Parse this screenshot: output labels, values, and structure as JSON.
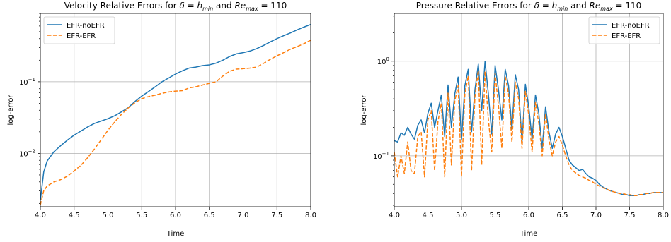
{
  "chart_data": [
    {
      "type": "line",
      "title": "Velocity Relative Errors for δ = h_min and Re_max = 110",
      "title_parts": {
        "pre": "Velocity Relative Errors for ",
        "delta": "δ",
        "eq1": " = ",
        "h": "h",
        "hsub": "min",
        "and": " and ",
        "re": "Re",
        "resub": "max",
        "eq2": " = 110"
      },
      "xlabel": "Time",
      "ylabel": "log-error",
      "xlim": [
        4.0,
        8.0
      ],
      "ylim": [
        0.0018,
        0.9
      ],
      "yscale": "log",
      "grid": true,
      "legend_position": "top-left",
      "x_ticks": [
        "4.0",
        "4.5",
        "5.0",
        "5.5",
        "6.0",
        "6.5",
        "7.0",
        "7.5",
        "8.0"
      ],
      "y_ticks": [
        {
          "value": 0.01,
          "base": "10",
          "exp": "−2"
        },
        {
          "value": 0.1,
          "base": "10",
          "exp": "−1"
        }
      ],
      "series": [
        {
          "name": "EFR-noEFR",
          "color": "#1f77b4",
          "style": "solid",
          "x": [
            4.0,
            4.05,
            4.1,
            4.2,
            4.3,
            4.4,
            4.5,
            4.6,
            4.7,
            4.8,
            4.9,
            5.0,
            5.1,
            5.2,
            5.3,
            5.4,
            5.5,
            5.6,
            5.7,
            5.8,
            5.9,
            6.0,
            6.1,
            6.2,
            6.3,
            6.4,
            6.5,
            6.6,
            6.7,
            6.8,
            6.9,
            7.0,
            7.1,
            7.2,
            7.3,
            7.4,
            7.5,
            7.6,
            7.7,
            7.8,
            7.9,
            8.0
          ],
          "y": [
            0.0022,
            0.0055,
            0.0078,
            0.0105,
            0.0128,
            0.0153,
            0.018,
            0.0205,
            0.0234,
            0.0262,
            0.0283,
            0.0305,
            0.0335,
            0.038,
            0.0435,
            0.053,
            0.063,
            0.073,
            0.085,
            0.1,
            0.113,
            0.128,
            0.142,
            0.155,
            0.16,
            0.168,
            0.172,
            0.182,
            0.2,
            0.225,
            0.245,
            0.255,
            0.268,
            0.29,
            0.32,
            0.36,
            0.4,
            0.44,
            0.48,
            0.53,
            0.58,
            0.63
          ]
        },
        {
          "name": "EFR-EFR",
          "color": "#ff7f0e",
          "style": "dashed",
          "x": [
            4.0,
            4.05,
            4.1,
            4.2,
            4.3,
            4.4,
            4.5,
            4.6,
            4.7,
            4.8,
            4.9,
            5.0,
            5.1,
            5.2,
            5.3,
            5.4,
            5.5,
            5.6,
            5.7,
            5.8,
            5.9,
            6.0,
            6.1,
            6.2,
            6.3,
            6.4,
            6.5,
            6.6,
            6.7,
            6.8,
            6.9,
            7.0,
            7.1,
            7.2,
            7.3,
            7.4,
            7.5,
            7.6,
            7.7,
            7.8,
            7.9,
            8.0
          ],
          "y": [
            0.0019,
            0.003,
            0.0035,
            0.004,
            0.0043,
            0.0048,
            0.0057,
            0.0068,
            0.0087,
            0.0115,
            0.0155,
            0.021,
            0.0275,
            0.035,
            0.043,
            0.051,
            0.058,
            0.062,
            0.065,
            0.069,
            0.072,
            0.074,
            0.075,
            0.082,
            0.085,
            0.09,
            0.095,
            0.1,
            0.12,
            0.14,
            0.15,
            0.152,
            0.155,
            0.16,
            0.18,
            0.205,
            0.23,
            0.255,
            0.285,
            0.31,
            0.34,
            0.38
          ]
        }
      ]
    },
    {
      "type": "line",
      "title": "Pressure Relative Errors for δ = h_min and Re_max = 110",
      "title_parts": {
        "pre": "Pressure Relative Errors for ",
        "delta": "δ",
        "eq1": " = ",
        "h": "h",
        "hsub": "min",
        "and": " and ",
        "re": "Re",
        "resub": "max",
        "eq2": " = 110"
      },
      "xlabel": "Time",
      "ylabel": "log-error",
      "xlim": [
        4.0,
        8.0
      ],
      "ylim": [
        0.029,
        3.2
      ],
      "yscale": "log",
      "grid": true,
      "legend_position": "top-right",
      "x_ticks": [
        "4.0",
        "4.5",
        "5.0",
        "5.5",
        "6.0",
        "6.5",
        "7.0",
        "7.5",
        "8.0"
      ],
      "y_ticks": [
        {
          "value": 0.1,
          "base": "10",
          "exp": "−1"
        },
        {
          "value": 1.0,
          "base": "10",
          "exp": "0"
        }
      ],
      "series": [
        {
          "name": "EFR-noEFR",
          "color": "#1f77b4",
          "style": "solid",
          "x": [
            4.0,
            4.05,
            4.1,
            4.15,
            4.2,
            4.25,
            4.3,
            4.35,
            4.4,
            4.45,
            4.5,
            4.55,
            4.6,
            4.65,
            4.7,
            4.75,
            4.8,
            4.85,
            4.9,
            4.95,
            5.0,
            5.05,
            5.1,
            5.15,
            5.2,
            5.25,
            5.3,
            5.35,
            5.4,
            5.45,
            5.5,
            5.55,
            5.6,
            5.65,
            5.7,
            5.75,
            5.8,
            5.85,
            5.9,
            5.95,
            6.0,
            6.05,
            6.1,
            6.15,
            6.2,
            6.25,
            6.3,
            6.35,
            6.4,
            6.45,
            6.5,
            6.55,
            6.6,
            6.65,
            6.7,
            6.75,
            6.8,
            6.85,
            6.9,
            6.95,
            7.0,
            7.05,
            7.1,
            7.15,
            7.2,
            7.25,
            7.3,
            7.35,
            7.4,
            7.45,
            7.5,
            7.55,
            7.6,
            7.65,
            7.7,
            7.75,
            7.8,
            7.85,
            7.9,
            7.95,
            8.0
          ],
          "y": [
            0.145,
            0.14,
            0.175,
            0.165,
            0.2,
            0.17,
            0.15,
            0.21,
            0.24,
            0.175,
            0.28,
            0.36,
            0.2,
            0.3,
            0.44,
            0.16,
            0.56,
            0.2,
            0.45,
            0.68,
            0.15,
            0.55,
            0.82,
            0.18,
            0.5,
            0.93,
            0.3,
            1.0,
            0.45,
            0.17,
            0.9,
            0.5,
            0.24,
            0.82,
            0.55,
            0.19,
            0.72,
            0.5,
            0.14,
            0.57,
            0.33,
            0.15,
            0.44,
            0.28,
            0.12,
            0.33,
            0.18,
            0.12,
            0.17,
            0.2,
            0.16,
            0.12,
            0.09,
            0.08,
            0.075,
            0.07,
            0.072,
            0.065,
            0.06,
            0.058,
            0.055,
            0.05,
            0.047,
            0.045,
            0.043,
            0.042,
            0.041,
            0.04,
            0.039,
            0.039,
            0.038,
            0.038,
            0.038,
            0.039,
            0.039,
            0.04,
            0.04,
            0.041,
            0.041,
            0.041,
            0.041
          ]
        },
        {
          "name": "EFR-EFR",
          "color": "#ff7f0e",
          "style": "dashed",
          "x": [
            4.0,
            4.05,
            4.1,
            4.15,
            4.2,
            4.25,
            4.3,
            4.35,
            4.4,
            4.45,
            4.5,
            4.55,
            4.6,
            4.65,
            4.7,
            4.75,
            4.8,
            4.85,
            4.9,
            4.95,
            5.0,
            5.05,
            5.1,
            5.15,
            5.2,
            5.25,
            5.3,
            5.35,
            5.4,
            5.45,
            5.5,
            5.55,
            5.6,
            5.65,
            5.7,
            5.75,
            5.8,
            5.85,
            5.9,
            5.95,
            6.0,
            6.05,
            6.1,
            6.15,
            6.2,
            6.25,
            6.3,
            6.35,
            6.4,
            6.45,
            6.5,
            6.55,
            6.6,
            6.65,
            6.7,
            6.75,
            6.8,
            6.85,
            6.9,
            6.95,
            7.0,
            7.05,
            7.1,
            7.15,
            7.2,
            7.25,
            7.3,
            7.35,
            7.4,
            7.45,
            7.5,
            7.55,
            7.6,
            7.65,
            7.7,
            7.75,
            7.8,
            7.85,
            7.9,
            7.95,
            8.0
          ],
          "y": [
            0.11,
            0.06,
            0.1,
            0.065,
            0.14,
            0.07,
            0.065,
            0.16,
            0.18,
            0.06,
            0.24,
            0.3,
            0.07,
            0.23,
            0.36,
            0.06,
            0.46,
            0.08,
            0.38,
            0.55,
            0.06,
            0.45,
            0.7,
            0.07,
            0.42,
            0.8,
            0.08,
            0.78,
            0.24,
            0.11,
            0.74,
            0.34,
            0.12,
            0.7,
            0.45,
            0.14,
            0.6,
            0.4,
            0.12,
            0.48,
            0.27,
            0.11,
            0.37,
            0.22,
            0.1,
            0.28,
            0.15,
            0.1,
            0.14,
            0.16,
            0.13,
            0.1,
            0.08,
            0.07,
            0.066,
            0.062,
            0.06,
            0.058,
            0.055,
            0.053,
            0.05,
            0.048,
            0.046,
            0.045,
            0.043,
            0.042,
            0.041,
            0.04,
            0.04,
            0.039,
            0.039,
            0.038,
            0.038,
            0.039,
            0.039,
            0.04,
            0.04,
            0.041,
            0.041,
            0.041,
            0.041
          ]
        }
      ]
    }
  ]
}
